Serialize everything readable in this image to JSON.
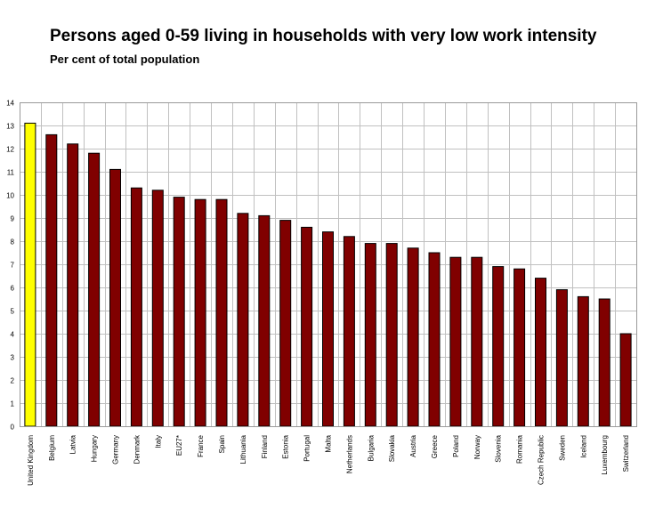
{
  "chart_data": {
    "type": "bar",
    "title": "Persons aged 0-59 living in households with very low work intensity",
    "subtitle": "Per cent of total population",
    "xlabel": "",
    "ylabel": "",
    "ylim": [
      0,
      14
    ],
    "yticks": [
      0,
      1,
      2,
      3,
      4,
      5,
      6,
      7,
      8,
      9,
      10,
      11,
      12,
      13,
      14
    ],
    "grid": true,
    "legend": "none",
    "colors": {
      "default": "#800000",
      "highlight": "#ffff00",
      "grid": "#c0c0c0",
      "border": "#000000"
    },
    "highlight_index": 0,
    "categories": [
      "United Kingdom",
      "Belgium",
      "Latvia",
      "Hungary",
      "Germany",
      "Denmark",
      "Italy",
      "EU27",
      "France",
      "Spain",
      "Lithuania",
      "Finland",
      "Estonia",
      "Portugal",
      "Malta",
      "Netherlands",
      "Bulgaria",
      "Slovakia",
      "Austria",
      "Greece",
      "Poland",
      "Norway",
      "Slovenia",
      "Romania",
      "Czech Republic",
      "Sweden",
      "Iceland",
      "Luxembourg",
      "Switzerland"
    ],
    "category_labels": [
      "United Kingdom",
      "Belgium",
      "Latvia",
      "Hungary",
      "Germany",
      "Denmark",
      "Italy",
      "EU27*",
      "France",
      "Spain",
      "Lithuania",
      "Finland",
      "Estonia",
      "Portugal",
      "Malta",
      "Netherlands",
      "Bulgaria",
      "Slovakia",
      "Austria",
      "Greece",
      "Poland",
      "Norway",
      "Slovenia",
      "Romania",
      "Czech Republic",
      "Sweden",
      "Iceland",
      "Luxembourg",
      "Switzerland"
    ],
    "values": [
      13.1,
      12.6,
      12.2,
      11.8,
      11.1,
      10.3,
      10.2,
      9.9,
      9.8,
      9.8,
      9.2,
      9.1,
      8.9,
      8.6,
      8.4,
      8.2,
      7.9,
      7.9,
      7.7,
      7.5,
      7.3,
      7.3,
      6.9,
      6.8,
      6.4,
      5.9,
      5.6,
      5.5,
      4.0
    ]
  }
}
